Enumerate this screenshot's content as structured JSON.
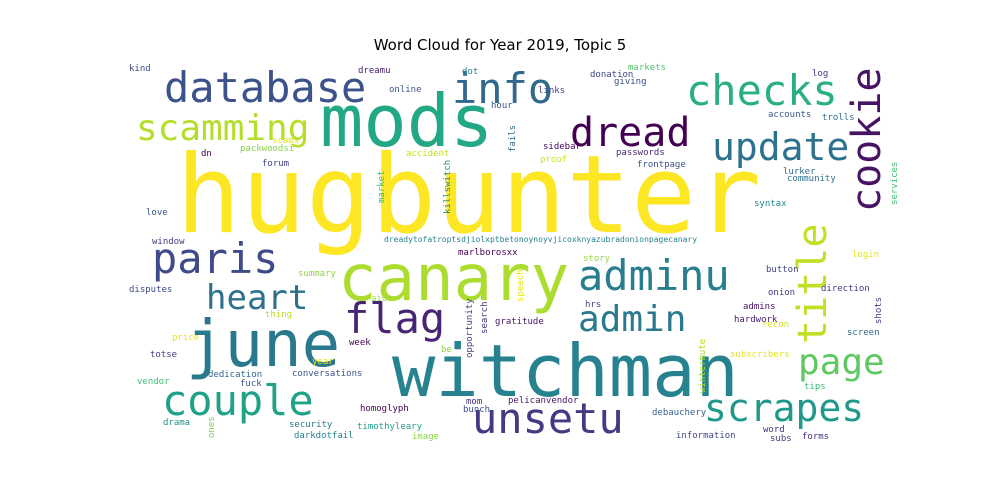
{
  "chart_data": {
    "type": "wordcloud",
    "title": "Word Cloud for Year 2019, Topic 5",
    "background": "#ffffff",
    "colormap": "viridis",
    "words": [
      {
        "text": "hugbunter",
        "color": "#fde725"
      },
      {
        "text": "mods",
        "color": "#22a884"
      },
      {
        "text": "witchman",
        "color": "#26828e"
      },
      {
        "text": "canary",
        "color": "#addc30"
      },
      {
        "text": "june",
        "color": "#2a788e"
      },
      {
        "text": "database",
        "color": "#3b528b"
      },
      {
        "text": "info",
        "color": "#31688e"
      },
      {
        "text": "checks",
        "color": "#2ab07f"
      },
      {
        "text": "cookie",
        "color": "#471365"
      },
      {
        "text": "dread",
        "color": "#440154"
      },
      {
        "text": "scamming",
        "color": "#b5de2b"
      },
      {
        "text": "update",
        "color": "#2c728e"
      },
      {
        "text": "title",
        "color": "#c2df23"
      },
      {
        "text": "paris",
        "color": "#3e4a89"
      },
      {
        "text": "adminu",
        "color": "#287d8e"
      },
      {
        "text": "heart",
        "color": "#2d708e"
      },
      {
        "text": "flag",
        "color": "#482475"
      },
      {
        "text": "admin",
        "color": "#297a8e"
      },
      {
        "text": "page",
        "color": "#5ec962"
      },
      {
        "text": "couple",
        "color": "#1fa287"
      },
      {
        "text": "unsetu",
        "color": "#443983"
      },
      {
        "text": "scrapes",
        "color": "#1f9a8a"
      },
      {
        "text": "kind",
        "color": "#3e4c8a"
      },
      {
        "text": "dreamu",
        "color": "#482173"
      },
      {
        "text": "dot",
        "color": "#25848e"
      },
      {
        "text": "markets",
        "color": "#52c569"
      },
      {
        "text": "online",
        "color": "#3b518b"
      },
      {
        "text": "links",
        "color": "#3f4788"
      },
      {
        "text": "donation",
        "color": "#404588"
      },
      {
        "text": "giving",
        "color": "#3d4e8a"
      },
      {
        "text": "log",
        "color": "#46337f"
      },
      {
        "text": "hour",
        "color": "#39568c"
      },
      {
        "text": "accounts",
        "color": "#38588c"
      },
      {
        "text": "trolls",
        "color": "#2f6c8e"
      },
      {
        "text": "scams",
        "color": "#dde318"
      },
      {
        "text": "packwoodsi",
        "color": "#86d549"
      },
      {
        "text": "fails",
        "color": "#2f6b8e"
      },
      {
        "text": "sidebar",
        "color": "#450559"
      },
      {
        "text": "passwords",
        "color": "#482677"
      },
      {
        "text": "accident",
        "color": "#c8e020"
      },
      {
        "text": "proof",
        "color": "#d5e21a"
      },
      {
        "text": "frontpage",
        "color": "#3b528b"
      },
      {
        "text": "dn",
        "color": "#440154"
      },
      {
        "text": "forum",
        "color": "#414487"
      },
      {
        "text": "market",
        "color": "#3aba76"
      },
      {
        "text": "killswitch",
        "color": "#228c8d"
      },
      {
        "text": "lurker",
        "color": "#2e6e8e"
      },
      {
        "text": "community",
        "color": "#2d708e"
      },
      {
        "text": "services",
        "color": "#42be71"
      },
      {
        "text": "love",
        "color": "#3b528b"
      },
      {
        "text": "syntax",
        "color": "#23888e"
      },
      {
        "text": "window",
        "color": "#443a83"
      },
      {
        "text": "dreadytofatroptsdjiolxptbetonoynoyvjicoxknyazubradonionpagecanary",
        "color": "#26818e"
      },
      {
        "text": "marlborosxx",
        "color": "#440154"
      },
      {
        "text": "login",
        "color": "#e5e419"
      },
      {
        "text": "summary",
        "color": "#90d743"
      },
      {
        "text": "story",
        "color": "#98d83e"
      },
      {
        "text": "button",
        "color": "#414487"
      },
      {
        "text": "disputes",
        "color": "#3f4889"
      },
      {
        "text": "speech",
        "color": "#e2e418"
      },
      {
        "text": "aide",
        "color": "#9bd93c"
      },
      {
        "text": "hrs",
        "color": "#404588"
      },
      {
        "text": "onion",
        "color": "#453581"
      },
      {
        "text": "direction",
        "color": "#453781"
      },
      {
        "text": "admins",
        "color": "#481467"
      },
      {
        "text": "thing",
        "color": "#b8de29"
      },
      {
        "text": "opportunity",
        "color": "#404688"
      },
      {
        "text": "search",
        "color": "#46327e"
      },
      {
        "text": "gratitude",
        "color": "#471365"
      },
      {
        "text": "hardwork",
        "color": "#482071"
      },
      {
        "text": "recon",
        "color": "#d8e219"
      },
      {
        "text": "shots",
        "color": "#414487"
      },
      {
        "text": "price",
        "color": "#e7e419"
      },
      {
        "text": "week",
        "color": "#440154"
      },
      {
        "text": "be",
        "color": "#8bd646"
      },
      {
        "text": "screen",
        "color": "#31678e"
      },
      {
        "text": "totse",
        "color": "#453882"
      },
      {
        "text": "year",
        "color": "#e5e419"
      },
      {
        "text": "vendor",
        "color": "#3dbc74"
      },
      {
        "text": "dedication",
        "color": "#31668e"
      },
      {
        "text": "conversations",
        "color": "#3b528b"
      },
      {
        "text": "wintermute",
        "color": "#b2dd2d"
      },
      {
        "text": "subscribers",
        "color": "#e7e419"
      },
      {
        "text": "fuck",
        "color": "#3b518b"
      },
      {
        "text": "tips",
        "color": "#38b977"
      },
      {
        "text": "homoglyph",
        "color": "#440154"
      },
      {
        "text": "mom",
        "color": "#472d7b"
      },
      {
        "text": "pelicanvendor",
        "color": "#481467"
      },
      {
        "text": "debauchery",
        "color": "#355f8d"
      },
      {
        "text": "drama",
        "color": "#20928c"
      },
      {
        "text": "ones",
        "color": "#73d056"
      },
      {
        "text": "security",
        "color": "#2a778e"
      },
      {
        "text": "darkdotfail",
        "color": "#25838e"
      },
      {
        "text": "timothyleary",
        "color": "#1f9e89"
      },
      {
        "text": "image",
        "color": "#8ed645"
      },
      {
        "text": "bunch",
        "color": "#3d4d8a"
      },
      {
        "text": "information",
        "color": "#404688"
      },
      {
        "text": "word",
        "color": "#46307e"
      },
      {
        "text": "subs",
        "color": "#453781"
      },
      {
        "text": "forms",
        "color": "#46307e"
      }
    ]
  }
}
